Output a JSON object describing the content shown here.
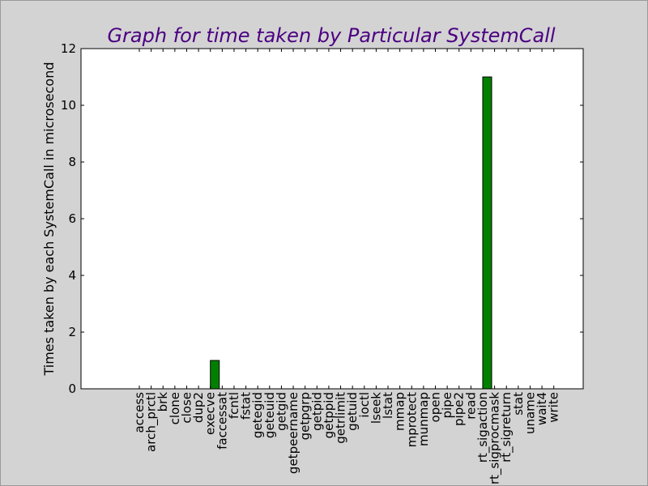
{
  "colors": {
    "figure_bg": "#d3d3d3",
    "plot_bg": "#ffffff",
    "bar_fill": "#008000",
    "bar_edge": "#000000",
    "title": "#4b0082"
  },
  "chart_data": {
    "type": "bar",
    "title": "Graph for time taken by Particular SystemCall",
    "xlabel": "",
    "ylabel": "Times taken by each SystemCall in microsecond",
    "ylim": [
      0,
      12
    ],
    "yticks": [
      0,
      2,
      4,
      6,
      8,
      10,
      12
    ],
    "grid": false,
    "categories": [
      "access",
      "arch_prctl",
      "brk",
      "clone",
      "close",
      "dup2",
      "execve",
      "faccessat",
      "fcntl",
      "fstat",
      "getegid",
      "geteuid",
      "getgid",
      "getpeername",
      "getpgrp",
      "getpid",
      "getppid",
      "getrlimit",
      "getuid",
      "ioctl",
      "lseek",
      "lstat",
      "mmap",
      "mprotect",
      "munmap",
      "open",
      "pipe",
      "pipe2",
      "read",
      "rt_sigaction",
      "rt_sigprocmask",
      "rt_sigreturn",
      "stat",
      "uname",
      "wait4",
      "write"
    ],
    "values": [
      0,
      0,
      0,
      0,
      0,
      0,
      1,
      0,
      0,
      0,
      0,
      0,
      0,
      0,
      0,
      0,
      0,
      0,
      0,
      0,
      0,
      0,
      0,
      0,
      0,
      0,
      0,
      0,
      0,
      11,
      0,
      0,
      0,
      0,
      0,
      0
    ]
  }
}
